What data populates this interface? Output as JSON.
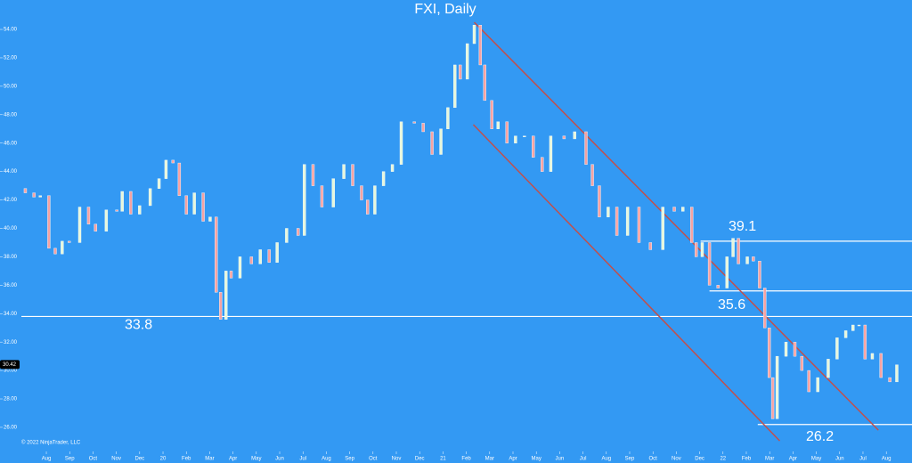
{
  "chart_data": {
    "type": "candlestick",
    "title": "FXI, Daily",
    "copyright": "© 2022 NinjaTrader, LLC",
    "background": "#3399f3",
    "up_color": "#e6f7dc",
    "down_color": "#f6a3a3",
    "xlim": [
      -1.07,
      37.1
    ],
    "ylim": [
      24.43,
      56.07
    ],
    "yticks": [
      {
        "value": 26,
        "label": "26.00"
      },
      {
        "value": 28,
        "label": "28.00"
      },
      {
        "value": 30,
        "label": "30.00"
      },
      {
        "value": 32,
        "label": "32.00"
      },
      {
        "value": 34,
        "label": "34.00"
      },
      {
        "value": 36,
        "label": "36.00"
      },
      {
        "value": 38,
        "label": "38.00"
      },
      {
        "value": 40,
        "label": "40.00"
      },
      {
        "value": 42,
        "label": "42.00"
      },
      {
        "value": 44,
        "label": "44.00"
      },
      {
        "value": 46,
        "label": "46.00"
      },
      {
        "value": 48,
        "label": "48.00"
      },
      {
        "value": 50,
        "label": "50.00"
      },
      {
        "value": 52,
        "label": "52.00"
      },
      {
        "value": 54,
        "label": "54.00"
      }
    ],
    "xticks": [
      {
        "value": 0,
        "label": "Aug"
      },
      {
        "value": 1,
        "label": "Sep"
      },
      {
        "value": 2,
        "label": "Oct"
      },
      {
        "value": 3,
        "label": "Nov"
      },
      {
        "value": 4,
        "label": "Dec"
      },
      {
        "value": 5,
        "label": "20"
      },
      {
        "value": 6,
        "label": "Feb"
      },
      {
        "value": 7,
        "label": "Mar"
      },
      {
        "value": 8,
        "label": "Apr"
      },
      {
        "value": 9,
        "label": "May"
      },
      {
        "value": 10,
        "label": "Jun"
      },
      {
        "value": 11,
        "label": "Jul"
      },
      {
        "value": 12,
        "label": "Aug"
      },
      {
        "value": 13,
        "label": "Sep"
      },
      {
        "value": 14,
        "label": "Oct"
      },
      {
        "value": 15,
        "label": "Nov"
      },
      {
        "value": 16,
        "label": "Dec"
      },
      {
        "value": 17,
        "label": "21"
      },
      {
        "value": 18,
        "label": "Feb"
      },
      {
        "value": 19,
        "label": "Mar"
      },
      {
        "value": 20,
        "label": "Apr"
      },
      {
        "value": 21,
        "label": "May"
      },
      {
        "value": 22,
        "label": "Jun"
      },
      {
        "value": 23,
        "label": "Jul"
      },
      {
        "value": 24,
        "label": "Aug"
      },
      {
        "value": 25,
        "label": "Sep"
      },
      {
        "value": 26,
        "label": "Oct"
      },
      {
        "value": 27,
        "label": "Nov"
      },
      {
        "value": 28,
        "label": "Dec"
      },
      {
        "value": 29,
        "label": "22"
      },
      {
        "value": 30,
        "label": "Feb"
      },
      {
        "value": 31,
        "label": "Mar"
      },
      {
        "value": 32,
        "label": "Apr"
      },
      {
        "value": 33,
        "label": "May"
      },
      {
        "value": 34,
        "label": "Jun"
      },
      {
        "value": 35,
        "label": "Jul"
      },
      {
        "value": 36,
        "label": "Aug"
      }
    ],
    "last_price": 30.42,
    "candles": {
      "x": [
        -0.9,
        -0.53,
        -0.26,
        0.11,
        0.38,
        0.68,
        0.98,
        1.43,
        1.81,
        2.11,
        2.57,
        3.02,
        3.25,
        3.62,
        4.0,
        4.45,
        4.83,
        5.13,
        5.43,
        5.7,
        6.0,
        6.34,
        6.72,
        7.02,
        7.28,
        7.47,
        7.7,
        7.92,
        8.3,
        8.79,
        9.17,
        9.55,
        9.89,
        10.3,
        10.79,
        11.06,
        11.43,
        11.81,
        12.3,
        12.75,
        13.13,
        13.51,
        13.77,
        14.08,
        14.45,
        14.83,
        15.21,
        15.77,
        16.15,
        16.53,
        16.91,
        17.21,
        17.51,
        17.74,
        18.04,
        18.34,
        18.6,
        18.79,
        19.09,
        19.36,
        19.74,
        20.11,
        20.49,
        20.87,
        21.25,
        21.62,
        22.19,
        22.64,
        23.13,
        23.4,
        23.7,
        24.08,
        24.45,
        24.91,
        25.4,
        25.89,
        26.42,
        26.91,
        27.28,
        27.66,
        27.85,
        28.11,
        28.42,
        28.79,
        29.17,
        29.43,
        29.66,
        30.04,
        30.3,
        30.57,
        30.79,
        30.98,
        31.13,
        31.32,
        31.7,
        32.08,
        32.38,
        32.68,
        33.06,
        33.51,
        33.89,
        34.26,
        34.57,
        34.83,
        35.09,
        35.4,
        35.77,
        36.15,
        36.45
      ],
      "open": [
        42.8,
        42.5,
        42.2,
        42.3,
        38.6,
        38.2,
        39.1,
        39.0,
        41.5,
        40.3,
        39.8,
        41.3,
        41.2,
        42.6,
        41.0,
        41.6,
        42.8,
        43.5,
        44.8,
        44.6,
        42.3,
        41.0,
        42.5,
        40.5,
        40.8,
        35.5,
        33.6,
        37.0,
        36.5,
        38.0,
        37.5,
        38.5,
        37.6,
        39.0,
        40.0,
        39.5,
        44.5,
        43.0,
        41.5,
        43.5,
        44.5,
        43.0,
        42.0,
        41.0,
        43.0,
        44.0,
        44.5,
        47.5,
        47.4,
        46.8,
        45.2,
        47.0,
        48.5,
        51.5,
        50.5,
        53.0,
        54.3,
        51.5,
        49.0,
        47.0,
        47.5,
        46.0,
        46.5,
        46.5,
        45.0,
        44.0,
        46.5,
        46.3,
        46.8,
        44.5,
        43.0,
        40.8,
        41.5,
        39.5,
        41.5,
        39.0,
        38.5,
        41.5,
        41.2,
        41.5,
        39.0,
        38.0,
        39.0,
        36.0,
        35.8,
        38.0,
        39.3,
        37.5,
        38.0,
        37.7,
        35.8,
        33.0,
        29.5,
        26.6,
        31.0,
        32.0,
        31.0,
        30.0,
        28.5,
        29.5,
        30.8,
        32.3,
        32.8,
        33.2,
        33.2,
        30.8,
        31.2,
        29.5,
        29.2
      ],
      "close": [
        42.5,
        42.2,
        42.3,
        38.6,
        38.2,
        39.1,
        39.0,
        41.5,
        40.3,
        39.8,
        41.3,
        41.2,
        42.6,
        41.0,
        41.6,
        42.8,
        43.5,
        44.8,
        44.6,
        42.3,
        41.0,
        42.5,
        40.5,
        40.8,
        35.5,
        33.6,
        37.0,
        36.5,
        38.0,
        37.5,
        38.5,
        37.6,
        39.0,
        40.0,
        39.5,
        44.5,
        43.0,
        41.5,
        43.5,
        44.5,
        43.0,
        42.0,
        41.0,
        43.0,
        44.0,
        44.5,
        47.5,
        47.4,
        46.8,
        45.2,
        47.0,
        48.5,
        51.5,
        50.5,
        53.0,
        54.3,
        51.5,
        49.0,
        47.0,
        47.5,
        46.0,
        46.5,
        46.5,
        45.0,
        44.0,
        46.5,
        46.3,
        46.8,
        44.5,
        43.0,
        40.8,
        41.5,
        39.5,
        41.5,
        39.0,
        38.5,
        41.5,
        41.2,
        41.5,
        39.0,
        38.0,
        39.0,
        36.0,
        35.8,
        38.0,
        39.3,
        37.5,
        38.0,
        37.7,
        35.8,
        33.0,
        29.5,
        26.6,
        31.0,
        32.0,
        31.0,
        30.0,
        28.5,
        29.5,
        30.8,
        32.3,
        32.8,
        33.2,
        33.2,
        30.8,
        31.2,
        29.5,
        29.2,
        30.4
      ]
    },
    "levels": [
      {
        "value": 33.8
      },
      {
        "value": 39.1,
        "from": 28.04
      },
      {
        "value": 35.6,
        "from": 28.42
      },
      {
        "value": 26.2,
        "from": 30.49
      }
    ],
    "level_color": "#ffffff",
    "trendline_color": "#c0504d",
    "trendlines": [
      {
        "x": [
          18.34,
          35.66
        ],
        "y": [
          54.5,
          25.8
        ]
      },
      {
        "x": [
          18.3,
          31.43
        ],
        "y": [
          47.3,
          25.05
        ]
      }
    ]
  }
}
